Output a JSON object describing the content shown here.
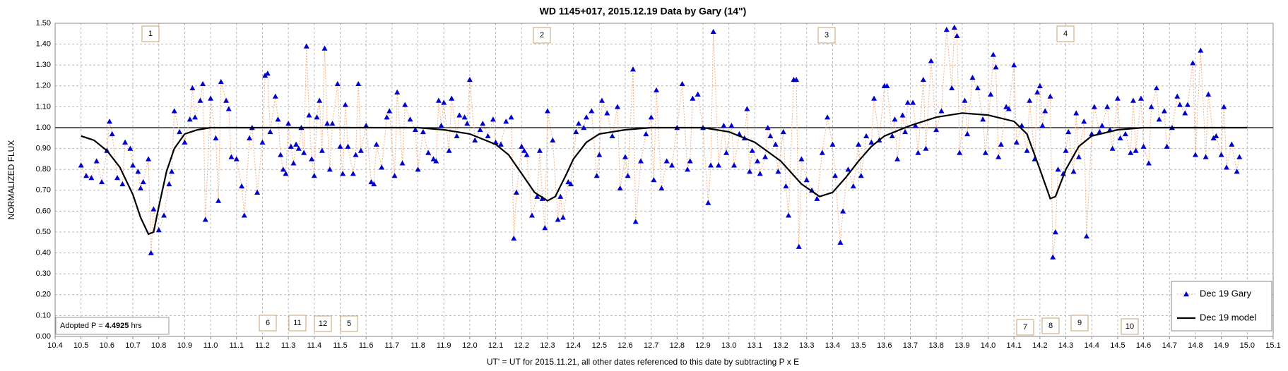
{
  "chart_data": {
    "type": "scatter",
    "title": "WD 1145+017, 2015.12.19 Data by Gary (14\")",
    "x_label": "UT' = UT for 2015.11.21, all other dates referenced to this date by subtracting P x E",
    "y_label": "NORMALIZED FLUX",
    "xlim": [
      10.4,
      15.1
    ],
    "ylim": [
      0,
      1.5
    ],
    "xticks": [
      10.4,
      10.5,
      10.6,
      10.7,
      10.8,
      10.9,
      {
        "value": 11,
        "label": "11.0"
      },
      11.1,
      11.2,
      11.3,
      11.4,
      11.5,
      11.6,
      11.7,
      11.8,
      11.9,
      {
        "value": 12,
        "label": "12.0"
      },
      12.1,
      12.2,
      12.3,
      12.4,
      12.5,
      12.6,
      12.7,
      12.8,
      12.9,
      {
        "value": 13,
        "label": "13.0"
      },
      13.1,
      13.2,
      13.3,
      13.4,
      13.5,
      13.6,
      13.7,
      13.8,
      13.9,
      {
        "value": 14,
        "label": "14.0"
      },
      14.1,
      14.2,
      14.3,
      14.4,
      14.5,
      14.6,
      14.7,
      14.8,
      14.9,
      {
        "value": 15,
        "label": "15.0"
      },
      15.1
    ],
    "yticks": [
      {
        "value": 0,
        "label": "0.00"
      },
      {
        "value": 0.1,
        "label": "0.10"
      },
      {
        "value": 0.2,
        "label": "0.20"
      },
      {
        "value": 0.3,
        "label": "0.30"
      },
      {
        "value": 0.4,
        "label": "0.40"
      },
      {
        "value": 0.5,
        "label": "0.50"
      },
      {
        "value": 0.6,
        "label": "0.60"
      },
      {
        "value": 0.7,
        "label": "0.70"
      },
      {
        "value": 0.8,
        "label": "0.80"
      },
      {
        "value": 0.9,
        "label": "0.90"
      },
      {
        "value": 1,
        "label": "1.00"
      },
      {
        "value": 1.1,
        "label": "1.10"
      },
      {
        "value": 1.2,
        "label": "1.20"
      },
      {
        "value": 1.3,
        "label": "1.30"
      },
      {
        "value": 1.4,
        "label": "1.40"
      },
      {
        "value": 1.5,
        "label": "1.50"
      }
    ],
    "grid": true,
    "hline": 1.0,
    "legend": "lower right",
    "annotations": [
      "1",
      "2",
      "3",
      "4",
      "6",
      "11",
      "12",
      "5",
      "7",
      "8",
      "9",
      "10"
    ],
    "period_note": [
      "Adopted P =",
      "4.4925",
      "hrs"
    ],
    "series": [
      {
        "name": "Dec 19 Gary",
        "color": "#0000cc",
        "line_color": "#f4b183",
        "x": [
          10.5,
          10.52,
          10.54,
          10.56,
          10.58,
          10.6,
          10.61,
          10.62,
          10.64,
          10.66,
          10.67,
          10.69,
          10.7,
          10.72,
          10.73,
          10.74,
          10.76,
          10.77,
          10.78,
          10.8,
          10.82,
          10.84,
          10.85,
          10.86,
          10.88,
          10.9,
          10.92,
          10.93,
          10.94,
          10.96,
          10.97,
          10.98,
          11.0,
          11.02,
          11.03,
          11.04,
          11.06,
          11.07,
          11.08,
          11.1,
          11.12,
          11.13,
          11.15,
          11.16,
          11.18,
          11.2,
          11.21,
          11.22,
          11.23,
          11.25,
          11.26,
          11.27,
          11.28,
          11.29,
          11.3,
          11.31,
          11.32,
          11.33,
          11.34,
          11.35,
          11.36,
          11.37,
          11.38,
          11.39,
          11.4,
          11.41,
          11.42,
          11.43,
          11.44,
          11.45,
          11.46,
          11.47,
          11.49,
          11.5,
          11.51,
          11.52,
          11.53,
          11.55,
          11.56,
          11.57,
          11.58,
          11.6,
          11.62,
          11.63,
          11.64,
          11.66,
          11.68,
          11.69,
          11.71,
          11.72,
          11.74,
          11.75,
          11.77,
          11.79,
          11.8,
          11.82,
          11.84,
          11.86,
          11.87,
          11.88,
          11.89,
          11.9,
          11.92,
          11.93,
          11.95,
          11.96,
          11.98,
          11.99,
          12.0,
          12.02,
          12.04,
          12.05,
          12.07,
          12.09,
          12.1,
          12.12,
          12.14,
          12.16,
          12.17,
          12.18,
          12.2,
          12.21,
          12.22,
          12.24,
          12.26,
          12.27,
          12.28,
          12.29,
          12.3,
          12.32,
          12.34,
          12.35,
          12.36,
          12.38,
          12.39,
          12.41,
          12.42,
          12.44,
          12.45,
          12.47,
          12.49,
          12.5,
          12.51,
          12.53,
          12.55,
          12.57,
          12.58,
          12.6,
          12.61,
          12.63,
          12.64,
          12.66,
          12.68,
          12.7,
          12.71,
          12.72,
          12.74,
          12.76,
          12.78,
          12.8,
          12.82,
          12.84,
          12.85,
          12.86,
          12.88,
          12.9,
          12.92,
          12.93,
          12.94,
          12.96,
          12.98,
          12.99,
          13.01,
          13.02,
          13.04,
          13.06,
          13.07,
          13.08,
          13.09,
          13.11,
          13.12,
          13.14,
          13.15,
          13.16,
          13.18,
          13.19,
          13.21,
          13.22,
          13.23,
          13.25,
          13.26,
          13.27,
          13.28,
          13.3,
          13.32,
          13.34,
          13.36,
          13.38,
          13.4,
          13.41,
          13.43,
          13.44,
          13.46,
          13.48,
          13.5,
          13.51,
          13.53,
          13.55,
          13.56,
          13.58,
          13.6,
          13.61,
          13.63,
          13.64,
          13.65,
          13.67,
          13.68,
          13.69,
          13.71,
          13.72,
          13.73,
          13.75,
          13.76,
          13.78,
          13.8,
          13.82,
          13.84,
          13.86,
          13.87,
          13.88,
          13.89,
          13.91,
          13.92,
          13.94,
          13.96,
          13.98,
          13.99,
          14.01,
          14.02,
          14.03,
          14.04,
          14.05,
          14.07,
          14.08,
          14.1,
          14.11,
          14.13,
          14.15,
          14.16,
          14.18,
          14.19,
          14.2,
          14.21,
          14.22,
          14.24,
          14.25,
          14.26,
          14.27,
          14.29,
          14.3,
          14.31,
          14.33,
          14.34,
          14.35,
          14.37,
          14.38,
          14.4,
          14.41,
          14.43,
          14.44,
          14.46,
          14.47,
          14.48,
          14.5,
          14.51,
          14.53,
          14.55,
          14.56,
          14.57,
          14.59,
          14.6,
          14.62,
          14.63,
          14.65,
          14.66,
          14.68,
          14.69,
          14.71,
          14.73,
          14.74,
          14.76,
          14.77,
          14.79,
          14.8,
          14.82,
          14.84,
          14.85,
          14.87,
          14.88,
          14.9,
          14.91,
          14.92,
          14.94,
          14.96,
          14.97
        ],
        "values": [
          0.82,
          0.77,
          0.76,
          0.84,
          0.74,
          0.89,
          1.03,
          0.97,
          0.76,
          0.73,
          0.93,
          0.9,
          0.82,
          0.79,
          0.71,
          0.74,
          0.85,
          0.4,
          0.61,
          0.51,
          0.58,
          0.73,
          0.79,
          1.08,
          0.98,
          0.93,
          1.04,
          1.19,
          1.05,
          1.13,
          1.21,
          0.56,
          1.14,
          0.95,
          0.65,
          1.22,
          1.13,
          1.09,
          0.86,
          0.85,
          0.72,
          0.58,
          0.95,
          1.0,
          0.69,
          0.93,
          1.25,
          1.26,
          0.98,
          1.15,
          1.04,
          0.87,
          0.8,
          0.78,
          1.02,
          0.91,
          0.83,
          0.92,
          0.9,
          1.0,
          0.88,
          1.39,
          1.06,
          0.85,
          0.77,
          1.05,
          1.13,
          0.89,
          1.38,
          1.02,
          0.8,
          1.02,
          1.21,
          0.91,
          0.78,
          1.11,
          0.91,
          0.78,
          0.87,
          1.21,
          0.89,
          1.01,
          0.74,
          0.73,
          0.92,
          0.81,
          1.05,
          1.08,
          0.77,
          1.17,
          0.83,
          1.11,
          1.04,
          0.99,
          0.8,
          0.98,
          0.88,
          0.85,
          0.84,
          1.13,
          1.01,
          1.12,
          0.89,
          1.14,
          0.96,
          1.06,
          1.05,
          1.02,
          1.23,
          0.94,
          0.99,
          1.02,
          0.96,
          1.04,
          0.93,
          0.92,
          1.03,
          1.05,
          0.47,
          0.69,
          0.91,
          0.89,
          0.87,
          0.58,
          0.67,
          0.89,
          0.66,
          0.52,
          1.08,
          0.94,
          0.56,
          0.67,
          0.57,
          0.74,
          0.73,
          0.98,
          1.02,
          1.0,
          1.05,
          1.08,
          0.77,
          0.87,
          1.13,
          1.07,
          0.96,
          1.1,
          0.71,
          0.86,
          0.77,
          1.28,
          0.55,
          0.84,
          0.97,
          1.05,
          0.75,
          1.18,
          0.71,
          0.84,
          0.82,
          1.0,
          1.21,
          0.8,
          0.84,
          1.14,
          1.16,
          1.0,
          0.64,
          0.82,
          1.46,
          0.82,
          1.01,
          0.88,
          1.01,
          0.82,
          0.97,
          0.95,
          1.09,
          0.79,
          0.89,
          0.84,
          0.78,
          0.86,
          1.0,
          0.96,
          0.92,
          0.79,
          0.98,
          0.72,
          0.58,
          1.23,
          1.23,
          0.43,
          0.85,
          0.75,
          0.7,
          0.66,
          0.88,
          1.05,
          0.92,
          0.77,
          0.45,
          0.6,
          0.8,
          0.72,
          0.92,
          0.77,
          0.96,
          0.93,
          1.14,
          0.94,
          1.2,
          1.2,
          0.96,
          1.04,
          0.85,
          1.06,
          0.98,
          1.12,
          1.12,
          1.01,
          0.88,
          1.23,
          0.9,
          1.32,
          0.99,
          1.08,
          1.47,
          1.19,
          1.48,
          1.44,
          0.88,
          1.13,
          0.97,
          1.24,
          1.19,
          1.04,
          0.88,
          1.16,
          1.35,
          1.29,
          0.86,
          0.92,
          1.1,
          1.09,
          1.3,
          0.93,
          1.01,
          0.89,
          1.13,
          0.85,
          1.17,
          1.2,
          1.01,
          1.08,
          1.15,
          0.38,
          0.5,
          0.8,
          0.78,
          0.89,
          0.98,
          0.79,
          1.07,
          0.86,
          1.03,
          0.48,
          0.97,
          1.1,
          0.98,
          1.01,
          1.1,
          0.99,
          0.9,
          1.14,
          0.95,
          0.97,
          0.88,
          1.13,
          0.89,
          1.14,
          0.91,
          0.83,
          1.1,
          1.19,
          1.04,
          1.08,
          0.91,
          1.0,
          1.15,
          1.11,
          1.07,
          1.11,
          1.31,
          0.87,
          1.37,
          0.86,
          1.16,
          0.95,
          0.96,
          0.87,
          1.1,
          0.81,
          0.92,
          0.79,
          0.86
        ]
      },
      {
        "name": "Dec 19 model",
        "type": "line",
        "color": "#000000",
        "x": [
          10.5,
          10.55,
          10.6,
          10.65,
          10.7,
          10.73,
          10.76,
          10.78,
          10.8,
          10.83,
          10.86,
          10.9,
          10.95,
          11.0,
          11.8,
          11.9,
          12.0,
          12.1,
          12.15,
          12.2,
          12.25,
          12.3,
          12.33,
          12.37,
          12.4,
          12.45,
          12.5,
          12.6,
          12.7,
          12.9,
          13.0,
          13.1,
          13.2,
          13.28,
          13.35,
          13.4,
          13.45,
          13.5,
          13.55,
          13.6,
          13.7,
          13.8,
          13.9,
          14.0,
          14.1,
          14.15,
          14.2,
          14.24,
          14.26,
          14.3,
          14.35,
          14.4,
          14.5,
          14.6,
          15.0
        ],
        "values": [
          0.96,
          0.94,
          0.89,
          0.81,
          0.68,
          0.57,
          0.49,
          0.5,
          0.62,
          0.79,
          0.9,
          0.97,
          0.99,
          1.0,
          1.0,
          0.99,
          0.97,
          0.92,
          0.87,
          0.78,
          0.69,
          0.65,
          0.67,
          0.77,
          0.85,
          0.93,
          0.97,
          0.99,
          1.0,
          1.0,
          0.98,
          0.93,
          0.84,
          0.73,
          0.67,
          0.69,
          0.76,
          0.84,
          0.91,
          0.96,
          1.01,
          1.05,
          1.07,
          1.06,
          1.03,
          0.97,
          0.8,
          0.66,
          0.67,
          0.8,
          0.91,
          0.96,
          0.99,
          1.0,
          1.0
        ]
      }
    ]
  }
}
